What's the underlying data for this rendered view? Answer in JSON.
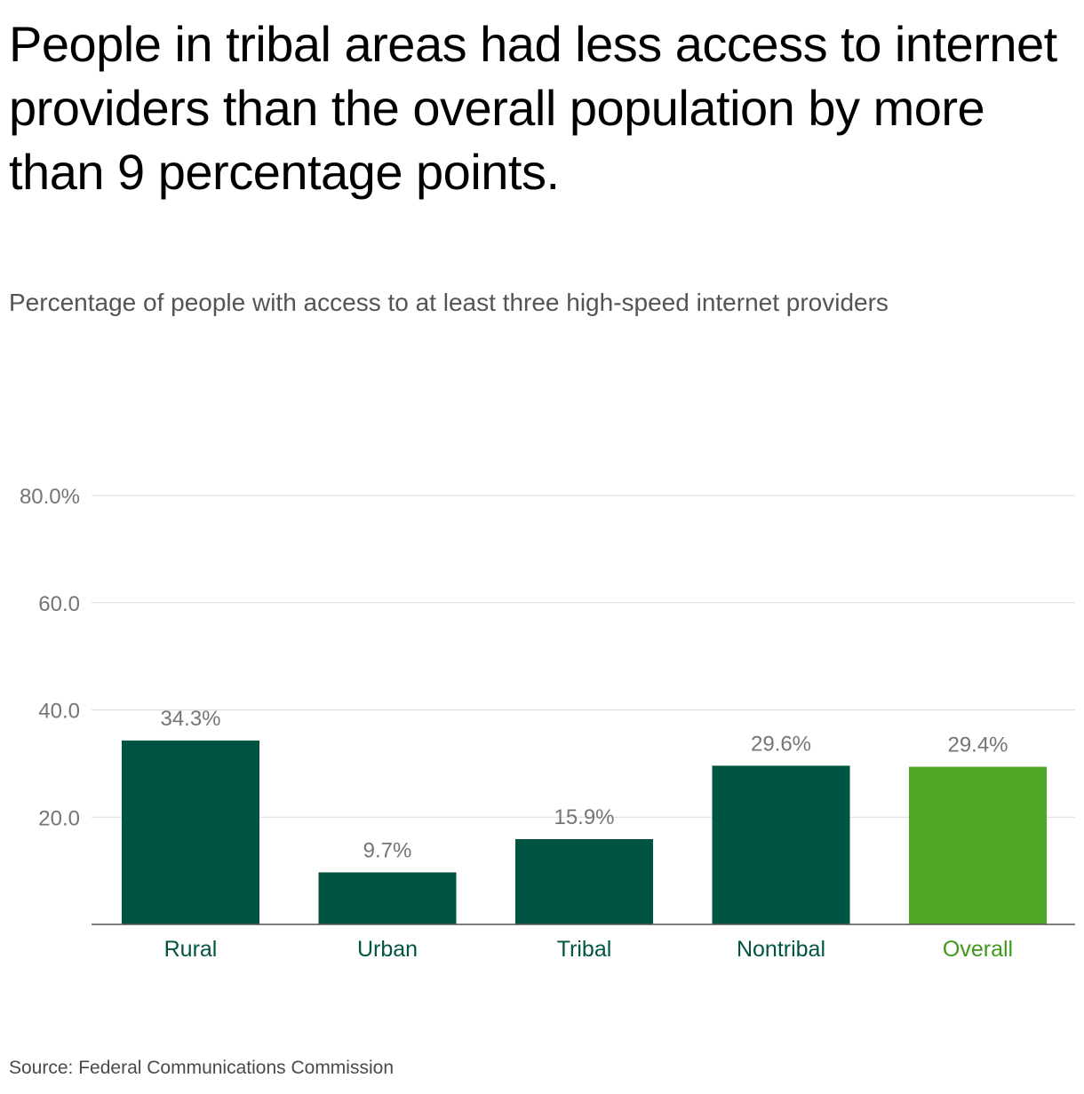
{
  "headline": "People in tribal areas had less access to internet providers than the overall population by more than 9 percentage points.",
  "subtitle": "Percentage of people with access to at least three high-speed internet providers",
  "source": "Source: Federal Communications Commission",
  "colors": {
    "bar_default": "#005542",
    "bar_highlight": "#50a626",
    "label_default": "#005542",
    "label_highlight": "#3f9a1a",
    "value_label": "#757575",
    "tick_label": "#757575",
    "gridline": "#dcdcdc",
    "baseline": "#555555"
  },
  "chart_data": {
    "type": "bar",
    "title": "People in tribal areas had less access to internet providers than the overall population by more than 9 percentage points.",
    "subtitle": "Percentage of people with access to at least three high-speed internet providers",
    "categories": [
      "Rural",
      "Urban",
      "Tribal",
      "Nontribal",
      "Overall"
    ],
    "values": [
      34.3,
      9.7,
      15.9,
      29.6,
      29.4
    ],
    "value_labels": [
      "34.3%",
      "9.7%",
      "15.9%",
      "29.6%",
      "29.4%"
    ],
    "highlight": [
      false,
      false,
      false,
      false,
      true
    ],
    "xlabel": "",
    "ylabel": "",
    "ylim": [
      0,
      80
    ],
    "yticks": [
      20,
      40,
      60,
      80
    ],
    "ytick_labels": [
      "20.0",
      "40.0",
      "60.0",
      "80.0%"
    ],
    "grid": true
  }
}
